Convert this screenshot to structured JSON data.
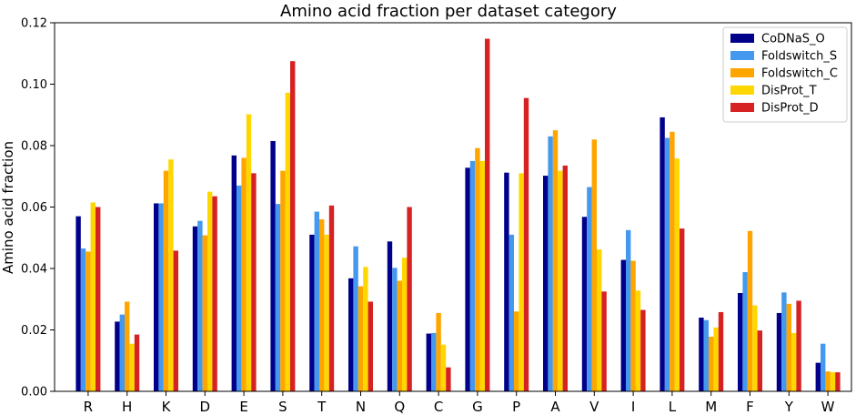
{
  "chart_data": {
    "type": "bar",
    "title": "Amino acid fraction per dataset category",
    "xlabel": "",
    "ylabel": "Amino acid fraction",
    "ylim": [
      0,
      0.12
    ],
    "yticks": [
      "0.00",
      "0.02",
      "0.04",
      "0.06",
      "0.08",
      "0.10",
      "0.12"
    ],
    "grid": false,
    "legend_position": "top-right",
    "categories": [
      "R",
      "H",
      "K",
      "D",
      "E",
      "S",
      "T",
      "N",
      "Q",
      "C",
      "G",
      "P",
      "A",
      "V",
      "I",
      "L",
      "M",
      "F",
      "Y",
      "W"
    ],
    "series": [
      {
        "name": "CoDNaS_O",
        "color": "#00008b",
        "values": [
          0.057,
          0.0227,
          0.0612,
          0.0537,
          0.0768,
          0.0815,
          0.051,
          0.0368,
          0.0488,
          0.0188,
          0.0728,
          0.0712,
          0.0702,
          0.0568,
          0.0428,
          0.0892,
          0.024,
          0.032,
          0.0255,
          0.0093
        ]
      },
      {
        "name": "Foldswitch_S",
        "color": "#4499ee",
        "values": [
          0.0465,
          0.025,
          0.0612,
          0.0555,
          0.067,
          0.061,
          0.0585,
          0.0472,
          0.0402,
          0.019,
          0.075,
          0.051,
          0.083,
          0.0665,
          0.0525,
          0.0825,
          0.0232,
          0.0388,
          0.0322,
          0.0155
        ]
      },
      {
        "name": "Foldswitch_C",
        "color": "#ffa500",
        "values": [
          0.0455,
          0.0292,
          0.0718,
          0.0508,
          0.076,
          0.0718,
          0.056,
          0.0342,
          0.036,
          0.0255,
          0.0792,
          0.026,
          0.085,
          0.082,
          0.0425,
          0.0845,
          0.0178,
          0.0522,
          0.0285,
          0.0065
        ]
      },
      {
        "name": "DisProt_T",
        "color": "#ffd700",
        "values": [
          0.0615,
          0.0155,
          0.0755,
          0.065,
          0.0902,
          0.0972,
          0.051,
          0.0405,
          0.0435,
          0.0152,
          0.075,
          0.071,
          0.0718,
          0.0462,
          0.0328,
          0.0758,
          0.0208,
          0.028,
          0.019,
          0.0062
        ]
      },
      {
        "name": "DisProt_D",
        "color": "#d62222",
        "values": [
          0.06,
          0.0185,
          0.0458,
          0.0635,
          0.071,
          0.1075,
          0.0605,
          0.0292,
          0.06,
          0.0078,
          0.1148,
          0.0955,
          0.0735,
          0.0325,
          0.0265,
          0.053,
          0.0258,
          0.0198,
          0.0295,
          0.0062
        ]
      }
    ]
  }
}
